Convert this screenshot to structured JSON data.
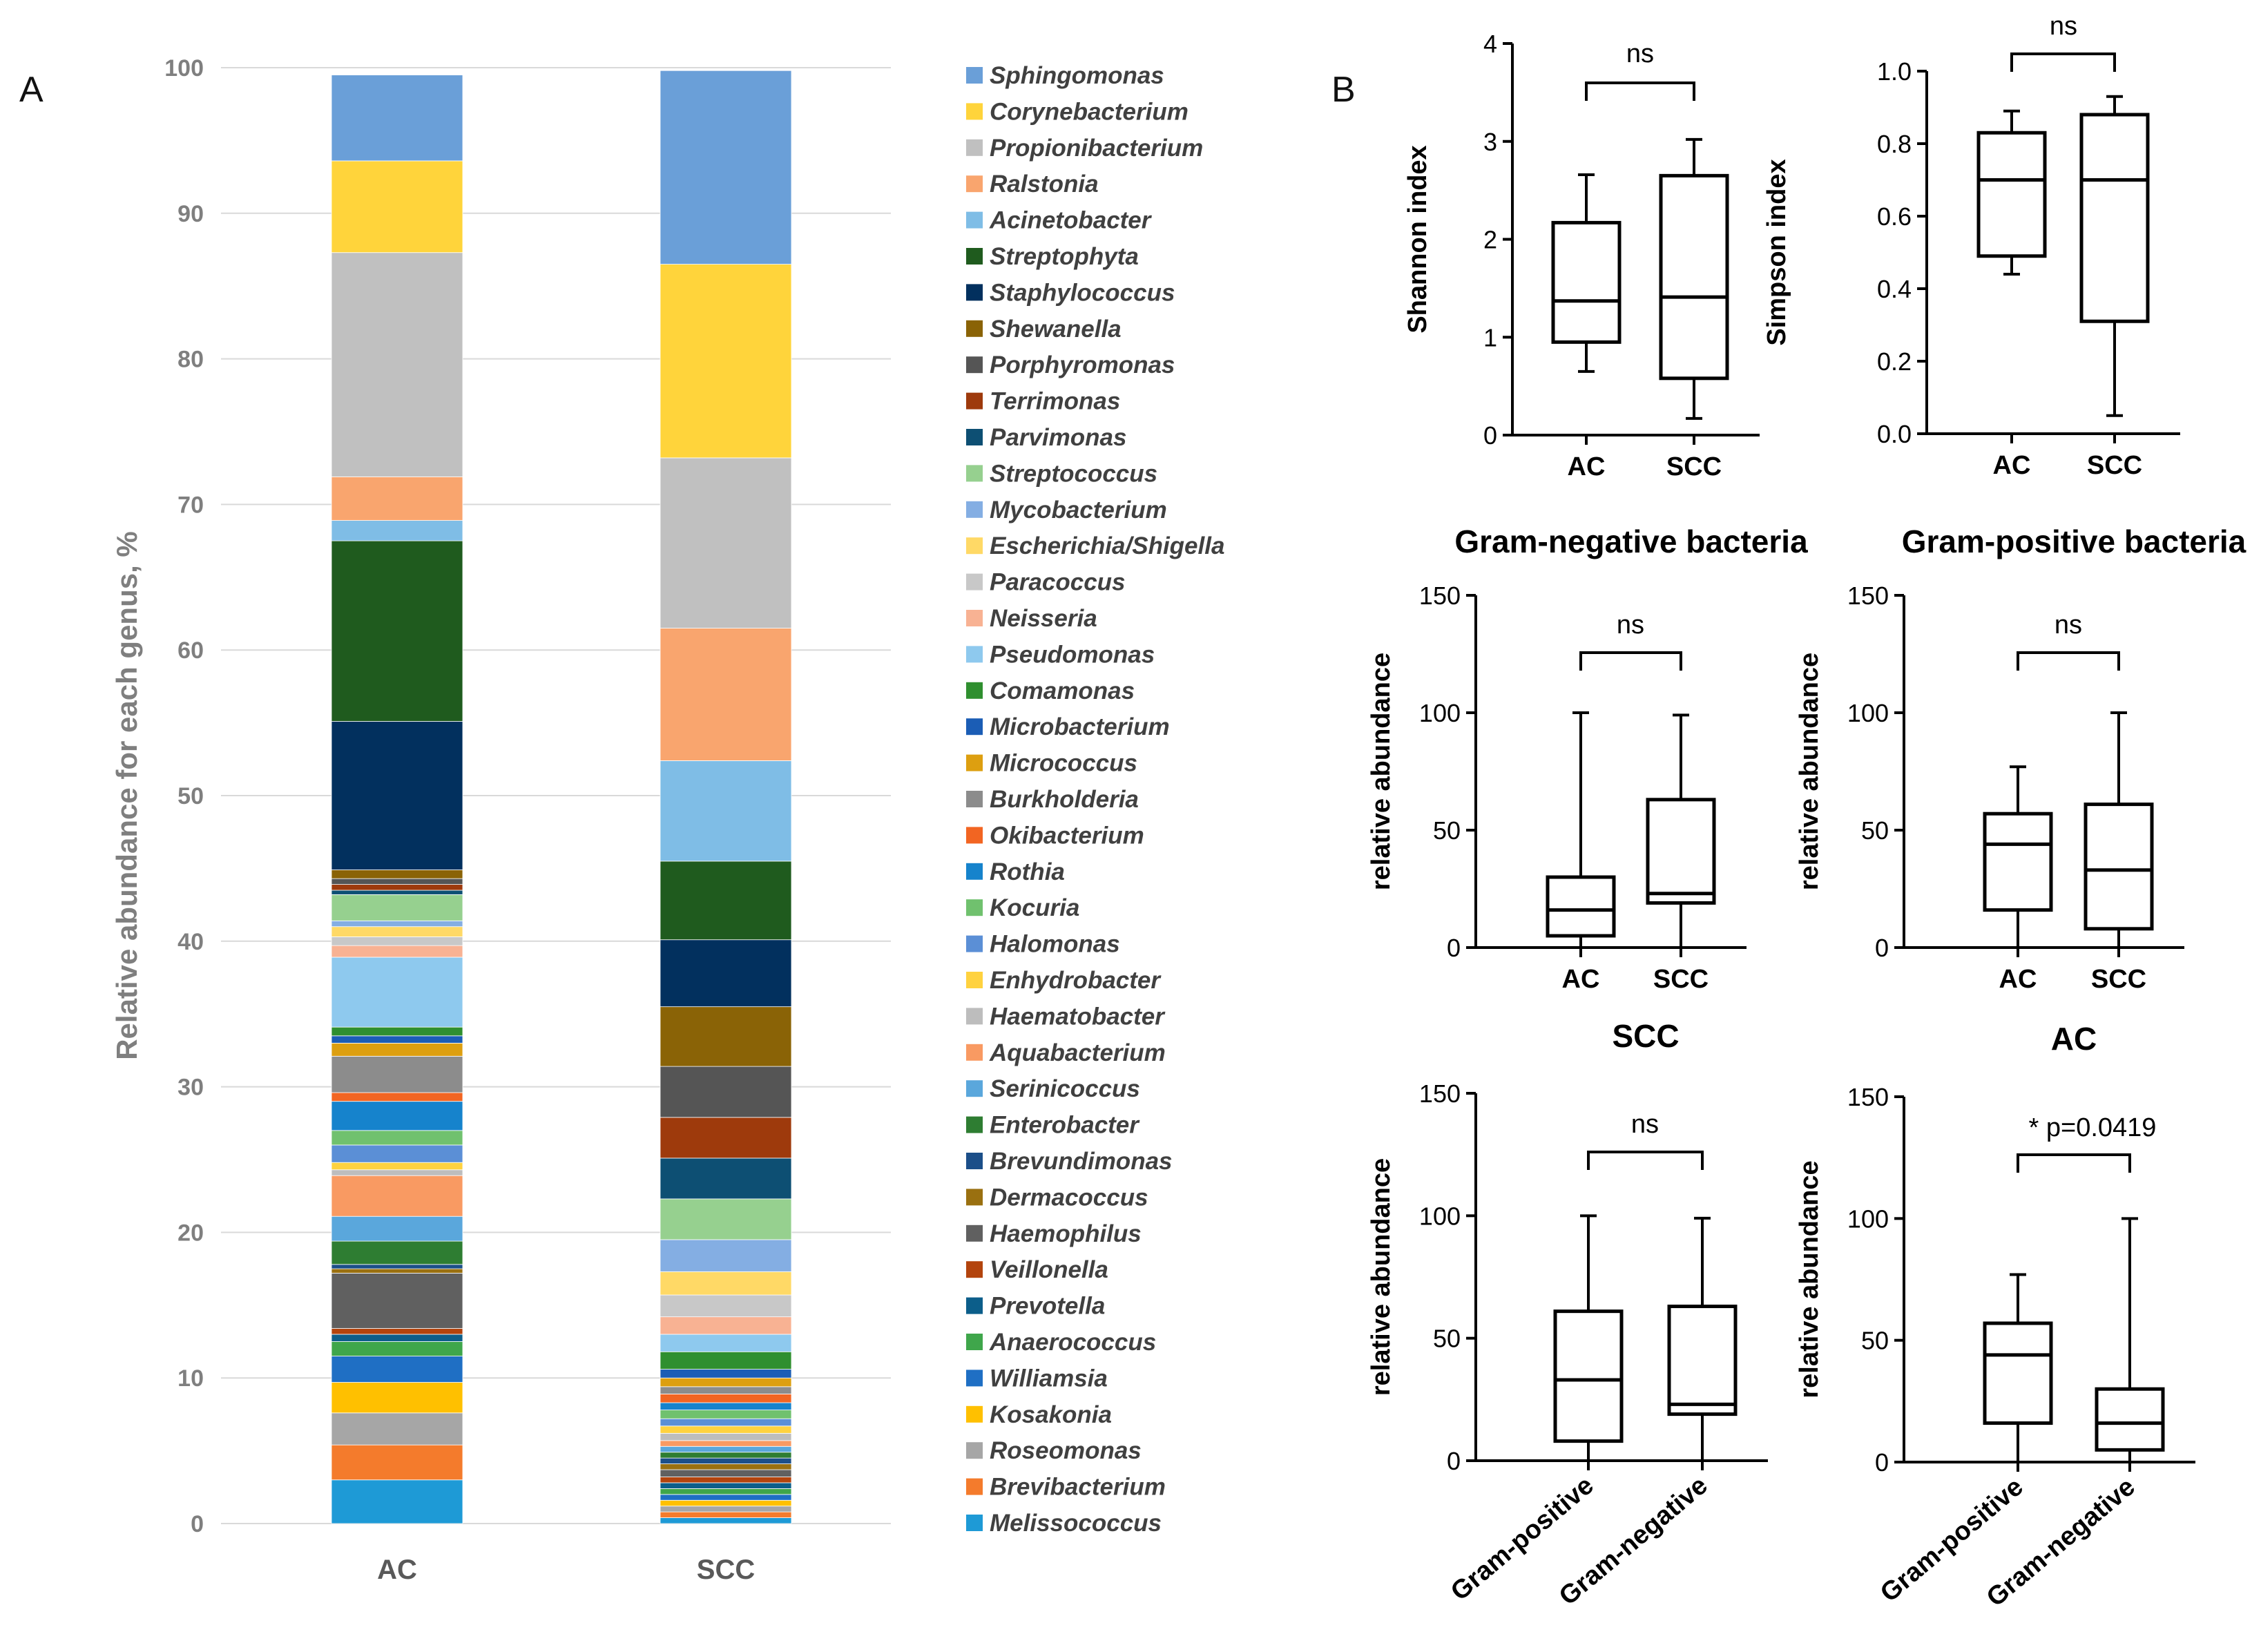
{
  "panel_labels": {
    "a": "A",
    "b": "B"
  },
  "chart_data": [
    {
      "id": "panelA",
      "type": "bar",
      "stacked": true,
      "title": "",
      "xlabel": "",
      "ylabel": "Relative abundance for each genus, %",
      "ylim": [
        0,
        100
      ],
      "yticks": [
        "0",
        "10",
        "20",
        "30",
        "40",
        "50",
        "60",
        "70",
        "80",
        "90",
        "100"
      ],
      "categories": [
        "AC",
        "SCC"
      ],
      "grid": true,
      "legend_position": "right",
      "series": [
        {
          "name": "Melissococcus",
          "color": "#1e9ad6",
          "values": [
            3.0,
            0.4
          ]
        },
        {
          "name": "Brevibacterium",
          "color": "#f47b2c",
          "values": [
            2.4,
            0.4
          ]
        },
        {
          "name": "Roseomonas",
          "color": "#a6a6a6",
          "values": [
            2.2,
            0.4
          ]
        },
        {
          "name": "Kosakonia",
          "color": "#ffc000",
          "values": [
            2.1,
            0.4
          ]
        },
        {
          "name": "Williamsia",
          "color": "#1f6fc4",
          "values": [
            1.8,
            0.4
          ]
        },
        {
          "name": "Anaerococcus",
          "color": "#3fa64b",
          "values": [
            1.0,
            0.4
          ]
        },
        {
          "name": "Prevotella",
          "color": "#0c5e8a",
          "values": [
            0.5,
            0.4
          ]
        },
        {
          "name": "Veillonella",
          "color": "#b3440d",
          "values": [
            0.4,
            0.4
          ]
        },
        {
          "name": "Haemophilus",
          "color": "#606060",
          "values": [
            3.8,
            0.5
          ]
        },
        {
          "name": "Dermacoccus",
          "color": "#9a7010",
          "values": [
            0.3,
            0.4
          ]
        },
        {
          "name": "Brevundimonas",
          "color": "#1c4f89",
          "values": [
            0.3,
            0.4
          ]
        },
        {
          "name": "Enterobacter",
          "color": "#2e7d32",
          "values": [
            1.6,
            0.4
          ]
        },
        {
          "name": "Serinicoccus",
          "color": "#5aa7dc",
          "values": [
            1.7,
            0.4
          ]
        },
        {
          "name": "Aquabacterium",
          "color": "#f99a62",
          "values": [
            2.8,
            0.4
          ]
        },
        {
          "name": "Haematobacter",
          "color": "#bdbdbd",
          "values": [
            0.4,
            0.5
          ]
        },
        {
          "name": "Enhydrobacter",
          "color": "#ffd23f",
          "values": [
            0.5,
            0.5
          ]
        },
        {
          "name": "Halomonas",
          "color": "#5b8fd6",
          "values": [
            1.2,
            0.5
          ]
        },
        {
          "name": "Kocuria",
          "color": "#70c16e",
          "values": [
            1.0,
            0.6
          ]
        },
        {
          "name": "Rothia",
          "color": "#1683cc",
          "values": [
            2.0,
            0.5
          ]
        },
        {
          "name": "Okibacterium",
          "color": "#f26522",
          "values": [
            0.6,
            0.6
          ]
        },
        {
          "name": "Burkholderia",
          "color": "#8c8c8c",
          "values": [
            2.5,
            0.5
          ]
        },
        {
          "name": "Micrococcus",
          "color": "#dd9f10",
          "values": [
            0.9,
            0.6
          ]
        },
        {
          "name": "Microbacterium",
          "color": "#1b5db5",
          "values": [
            0.5,
            0.6
          ]
        },
        {
          "name": "Comamonas",
          "color": "#2f8f2f",
          "values": [
            0.6,
            1.2
          ]
        },
        {
          "name": "Pseudomonas",
          "color": "#8ec9ee",
          "values": [
            4.8,
            1.2
          ]
        },
        {
          "name": "Neisseria",
          "color": "#f8b293",
          "values": [
            0.8,
            1.2
          ]
        },
        {
          "name": "Paracoccus",
          "color": "#c8c8c8",
          "values": [
            0.6,
            1.5
          ]
        },
        {
          "name": "Escherichia/Shigella",
          "color": "#ffd966",
          "values": [
            0.7,
            1.6
          ]
        },
        {
          "name": "Mycobacterium",
          "color": "#84aee3",
          "values": [
            0.4,
            2.2
          ]
        },
        {
          "name": "Streptococcus",
          "color": "#96d08f",
          "values": [
            1.8,
            2.8
          ]
        },
        {
          "name": "Parvimonas",
          "color": "#0d4f73",
          "values": [
            0.3,
            2.8
          ]
        },
        {
          "name": "Terrimonas",
          "color": "#9e3a0c",
          "values": [
            0.4,
            2.8
          ]
        },
        {
          "name": "Porphyromonas",
          "color": "#555555",
          "values": [
            0.4,
            3.5
          ]
        },
        {
          "name": "Shewanella",
          "color": "#8a6306",
          "values": [
            0.6,
            4.1
          ]
        },
        {
          "name": "Staphylococcus",
          "color": "#02305e",
          "values": [
            10.2,
            4.6
          ]
        },
        {
          "name": "Streptophyta",
          "color": "#1f5b1e",
          "values": [
            12.4,
            5.4
          ]
        },
        {
          "name": "Acinetobacter",
          "color": "#7fbde6",
          "values": [
            1.4,
            6.9
          ]
        },
        {
          "name": "Ralstonia",
          "color": "#f9a56e",
          "values": [
            3.0,
            9.1
          ]
        },
        {
          "name": "Propionibacterium",
          "color": "#c0c0c0",
          "values": [
            15.4,
            11.7
          ]
        },
        {
          "name": "Corynebacterium",
          "color": "#ffd43b",
          "values": [
            6.3,
            13.3
          ]
        },
        {
          "name": "Sphingomonas",
          "color": "#6a9fd8",
          "values": [
            5.9,
            13.3
          ]
        }
      ]
    },
    {
      "id": "shannon",
      "type": "box",
      "title": "",
      "ylabel": "Shannon index",
      "categories": [
        "AC",
        "SCC"
      ],
      "ylim": [
        0,
        4
      ],
      "yticks": [
        "0",
        "1",
        "2",
        "3",
        "4"
      ],
      "boxes": [
        {
          "min": 0.65,
          "q1": 0.95,
          "median": 1.37,
          "q3": 2.17,
          "max": 2.66
        },
        {
          "min": 0.17,
          "q1": 0.58,
          "median": 1.41,
          "q3": 2.65,
          "max": 3.02
        }
      ],
      "significance": "ns"
    },
    {
      "id": "simpson",
      "type": "box",
      "title": "",
      "ylabel": "Simpson index",
      "categories": [
        "AC",
        "SCC"
      ],
      "ylim": [
        0,
        1
      ],
      "yticks": [
        "0.0",
        "0.2",
        "0.4",
        "0.6",
        "0.8",
        "1.0"
      ],
      "boxes": [
        {
          "min": 0.44,
          "q1": 0.49,
          "median": 0.7,
          "q3": 0.83,
          "max": 0.89
        },
        {
          "min": 0.05,
          "q1": 0.31,
          "median": 0.7,
          "q3": 0.88,
          "max": 0.93
        }
      ],
      "significance": "ns"
    },
    {
      "id": "gramneg",
      "type": "box",
      "title": "Gram-negative bacteria",
      "ylabel": "relative abundance",
      "categories": [
        "AC",
        "SCC"
      ],
      "ylim": [
        0,
        150
      ],
      "yticks": [
        "0",
        "50",
        "100",
        "150"
      ],
      "boxes": [
        {
          "min": 0,
          "q1": 5,
          "median": 16,
          "q3": 30,
          "max": 100
        },
        {
          "min": 0,
          "q1": 19,
          "median": 23,
          "q3": 63,
          "max": 99
        }
      ],
      "significance": "ns"
    },
    {
      "id": "grampos",
      "type": "box",
      "title": "Gram-positive bacteria",
      "ylabel": "relative abundance",
      "categories": [
        "AC",
        "SCC"
      ],
      "ylim": [
        0,
        150
      ],
      "yticks": [
        "0",
        "50",
        "100",
        "150"
      ],
      "boxes": [
        {
          "min": 0,
          "q1": 16,
          "median": 44,
          "q3": 57,
          "max": 77
        },
        {
          "min": 0,
          "q1": 8,
          "median": 33,
          "q3": 61,
          "max": 100
        }
      ],
      "significance": "ns"
    },
    {
      "id": "scc",
      "type": "box",
      "title": "SCC",
      "ylabel": "relative abundance",
      "categories": [
        "Gram-positive",
        "Gram-negative"
      ],
      "ylim": [
        0,
        150
      ],
      "yticks": [
        "0",
        "50",
        "100",
        "150"
      ],
      "boxes": [
        {
          "min": 0,
          "q1": 8,
          "median": 33,
          "q3": 61,
          "max": 100
        },
        {
          "min": 0,
          "q1": 19,
          "median": 23,
          "q3": 63,
          "max": 99
        }
      ],
      "significance": "ns"
    },
    {
      "id": "ac",
      "type": "box",
      "title": "AC",
      "ylabel": "relative abundance",
      "categories": [
        "Gram-positive",
        "Gram-negative"
      ],
      "ylim": [
        0,
        150
      ],
      "yticks": [
        "0",
        "50",
        "100",
        "150"
      ],
      "boxes": [
        {
          "min": 0,
          "q1": 16,
          "median": 44,
          "q3": 57,
          "max": 77
        },
        {
          "min": 0,
          "q1": 5,
          "median": 16,
          "q3": 30,
          "max": 100
        }
      ],
      "significance": "* p=0.0419"
    }
  ]
}
